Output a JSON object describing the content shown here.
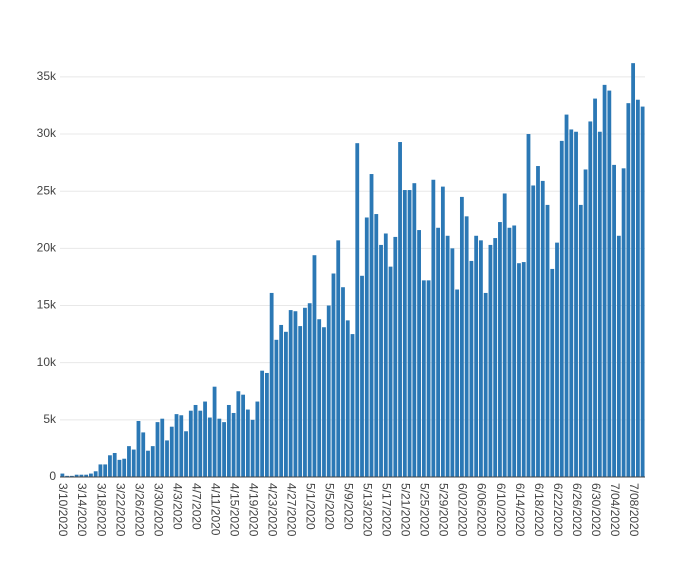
{
  "chart_data": {
    "type": "bar",
    "categories": [
      "3/10/2020",
      null,
      null,
      null,
      "3/14/2020",
      null,
      null,
      null,
      "3/18/2020",
      null,
      null,
      null,
      "3/22/2020",
      null,
      null,
      null,
      "3/26/2020",
      null,
      null,
      null,
      "3/30/2020",
      null,
      null,
      null,
      "4/3/2020",
      null,
      null,
      null,
      "4/7/2020",
      null,
      null,
      null,
      "4/11/2020",
      null,
      null,
      null,
      "4/15/2020",
      null,
      null,
      null,
      "4/19/2020",
      null,
      null,
      null,
      "4/23/2020",
      null,
      null,
      null,
      "4/27/2020",
      null,
      null,
      null,
      "5/1/2020",
      null,
      null,
      null,
      "5/5/2020",
      null,
      null,
      null,
      "5/9/2020",
      null,
      null,
      null,
      "5/13/2020",
      null,
      null,
      null,
      "5/17/2020",
      null,
      null,
      null,
      "5/21/2020",
      null,
      null,
      null,
      "5/25/2020",
      null,
      null,
      null,
      "5/29/2020",
      null,
      null,
      null,
      "6/02/2020",
      null,
      null,
      null,
      "6/06/2020",
      null,
      null,
      null,
      "6/10/2020",
      null,
      null,
      null,
      "6/14/2020",
      null,
      null,
      null,
      "6/18/2020",
      null,
      null,
      null,
      "6/22/2020",
      null,
      null,
      null,
      "6/26/2020",
      null,
      null,
      null,
      "6/30/2020",
      null,
      null,
      null,
      "7/04/2020",
      null,
      null,
      null,
      "7/08/2020",
      null,
      null
    ],
    "values": [
      300,
      100,
      100,
      200,
      200,
      200,
      300,
      500,
      1100,
      1100,
      1900,
      2100,
      1500,
      1600,
      2700,
      2400,
      4900,
      3900,
      2300,
      2700,
      4800,
      5100,
      3200,
      4400,
      5500,
      5400,
      4000,
      5800,
      6300,
      5800,
      6600,
      5200,
      7900,
      5100,
      4800,
      6300,
      5600,
      7500,
      7200,
      5900,
      5000,
      6600,
      9300,
      9100,
      16100,
      12000,
      13300,
      12700,
      14600,
      14500,
      13200,
      14800,
      15200,
      19400,
      13800,
      13100,
      15000,
      17800,
      20700,
      16600,
      13700,
      12500,
      29200,
      17600,
      22700,
      26500,
      23000,
      20300,
      21300,
      18400,
      21000,
      29300,
      25100,
      25100,
      25700,
      21600,
      17200,
      17200,
      26000,
      21800,
      25400,
      21100,
      20000,
      16400,
      24500,
      22800,
      18900,
      21100,
      20700,
      16100,
      20300,
      20900,
      22300,
      24800,
      21800,
      22000,
      18700,
      18800,
      30000,
      25500,
      27200,
      25900,
      23800,
      18200,
      20500,
      29400,
      31700,
      30400,
      30200,
      23800,
      26900,
      31100,
      33100,
      30200,
      34300,
      33800,
      27300,
      21100,
      27000,
      32700,
      36200,
      33000,
      32400
    ],
    "color": "#2b78b5",
    "ylim": [
      0,
      37000
    ],
    "yticks": [
      0,
      {
        "value": 5000,
        "label": "5k"
      },
      {
        "value": 10000,
        "label": "10k"
      },
      {
        "value": 15000,
        "label": "15k"
      },
      {
        "value": 20000,
        "label": "20k"
      },
      {
        "value": 25000,
        "label": "25k"
      },
      {
        "value": 30000,
        "label": "30k"
      },
      {
        "value": 35000,
        "label": "35k"
      }
    ],
    "grid": true
  }
}
